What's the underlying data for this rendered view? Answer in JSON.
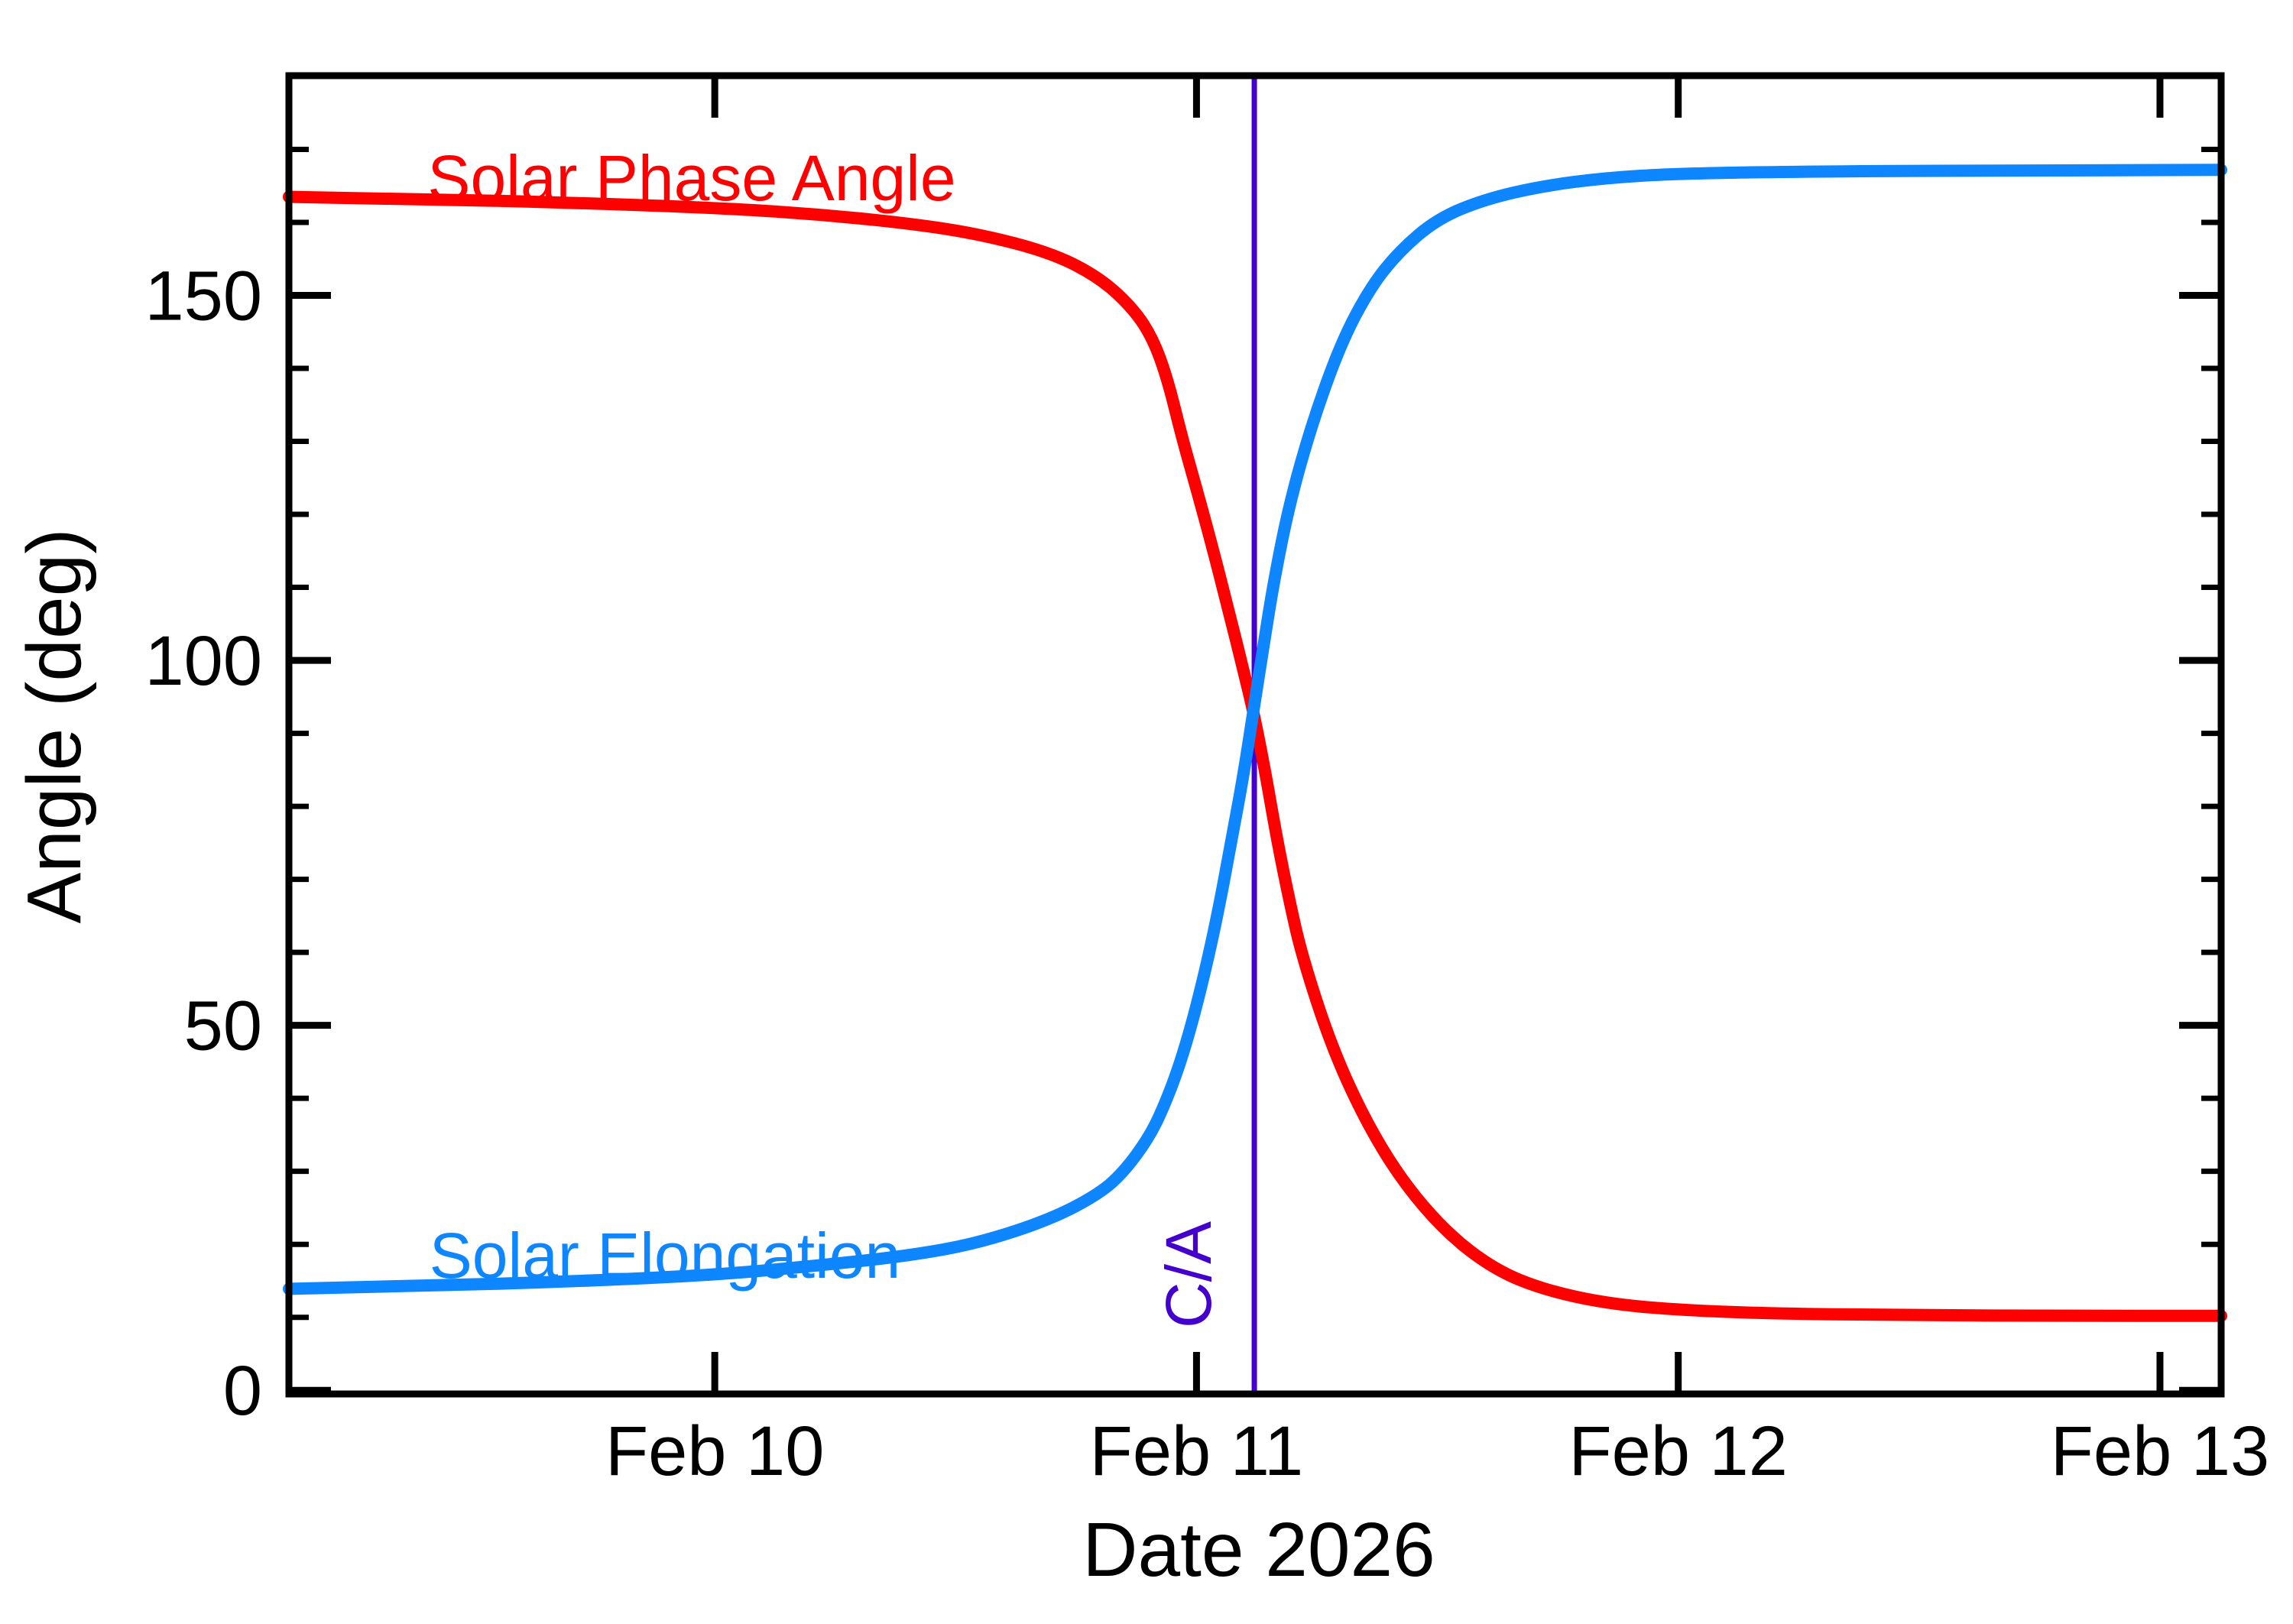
{
  "figure": {
    "background": "#ffffff",
    "frame_color": "#000000"
  },
  "chart_data": {
    "type": "line",
    "title": "",
    "xlabel": "Date 2026",
    "ylabel": "Angle (deg)",
    "x_unit": "day of February 2026",
    "xlim": [
      9.116,
      13.127
    ],
    "ylim": [
      -0.5,
      180.1
    ],
    "grid": false,
    "x_ticks": [
      {
        "value": 10,
        "label": "Feb 10"
      },
      {
        "value": 11,
        "label": "Feb 11"
      },
      {
        "value": 12,
        "label": "Feb 12"
      },
      {
        "value": 13,
        "label": "Feb 13"
      }
    ],
    "y_ticks": [
      {
        "value": 0,
        "label": "0"
      },
      {
        "value": 50,
        "label": "50"
      },
      {
        "value": 100,
        "label": "100"
      },
      {
        "value": 150,
        "label": "150"
      }
    ],
    "y_minor_step": 10,
    "annotations": [
      {
        "label": "C/A",
        "x": 11.12,
        "color": "#4400cc",
        "description": "closest approach vertical line"
      }
    ],
    "series": [
      {
        "name": "Solar Phase Angle",
        "color": "#ff0000",
        "points": [
          [
            9.116,
            163.5
          ],
          [
            9.4,
            163.2
          ],
          [
            9.7,
            162.7
          ],
          [
            10.0,
            162.0
          ],
          [
            10.2,
            161.2
          ],
          [
            10.4,
            159.9
          ],
          [
            10.55,
            158.4
          ],
          [
            10.7,
            155.8
          ],
          [
            10.8,
            152.4
          ],
          [
            10.87,
            148.1
          ],
          [
            10.91,
            144.0
          ],
          [
            10.94,
            138.5
          ],
          [
            10.97,
            130.5
          ],
          [
            11.0,
            123.5
          ],
          [
            11.031,
            116.0
          ],
          [
            11.066,
            107.0
          ],
          [
            11.098,
            98.5
          ],
          [
            11.118,
            93.0
          ],
          [
            11.142,
            85.0
          ],
          [
            11.167,
            75.5
          ],
          [
            11.193,
            67.0
          ],
          [
            11.219,
            59.5
          ],
          [
            11.278,
            47.5
          ],
          [
            11.346,
            37.5
          ],
          [
            11.425,
            28.8
          ],
          [
            11.52,
            21.5
          ],
          [
            11.62,
            16.5
          ],
          [
            11.72,
            13.8
          ],
          [
            11.85,
            11.9
          ],
          [
            12.0,
            11.0
          ],
          [
            12.2,
            10.5
          ],
          [
            12.5,
            10.3
          ],
          [
            12.8,
            10.2
          ],
          [
            13.127,
            10.2
          ]
        ]
      },
      {
        "name": "Solar Elongation",
        "color": "#0d86ff",
        "points": [
          [
            9.116,
            13.9
          ],
          [
            9.4,
            14.3
          ],
          [
            9.7,
            14.9
          ],
          [
            10.0,
            15.8
          ],
          [
            10.2,
            17.0
          ],
          [
            10.4,
            18.4
          ],
          [
            10.55,
            20.2
          ],
          [
            10.7,
            23.5
          ],
          [
            10.8,
            27.0
          ],
          [
            10.85,
            30.0
          ],
          [
            10.9,
            34.5
          ],
          [
            10.93,
            38.5
          ],
          [
            10.965,
            44.5
          ],
          [
            11.0,
            52.5
          ],
          [
            11.039,
            63.5
          ],
          [
            11.076,
            76.5
          ],
          [
            11.098,
            84.5
          ],
          [
            11.118,
            93.0
          ],
          [
            11.139,
            102.0
          ],
          [
            11.161,
            111.0
          ],
          [
            11.193,
            121.5
          ],
          [
            11.24,
            132.5
          ],
          [
            11.3,
            143.5
          ],
          [
            11.36,
            151.0
          ],
          [
            11.42,
            156.0
          ],
          [
            11.5,
            160.5
          ],
          [
            11.6,
            163.2
          ],
          [
            11.72,
            165.0
          ],
          [
            11.85,
            166.1
          ],
          [
            12.0,
            166.7
          ],
          [
            12.3,
            167.0
          ],
          [
            12.7,
            167.1
          ],
          [
            13.127,
            167.2
          ]
        ]
      }
    ]
  }
}
